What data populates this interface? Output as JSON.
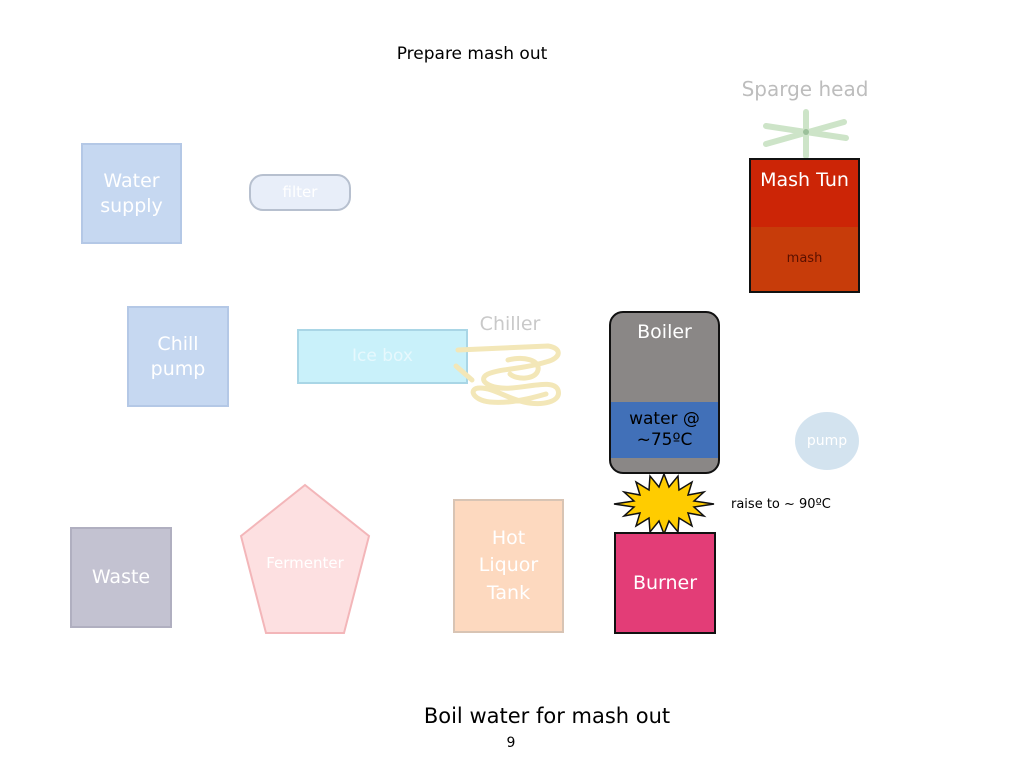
{
  "slide": {
    "heading": "Prepare mash out",
    "caption": "Boil water for mash out",
    "page_number": "9"
  },
  "components": {
    "water_supply": "Water supply",
    "filter": "filter",
    "chill_pump": "Chill pump",
    "ice_box": "Ice box",
    "chiller": "Chiller",
    "waste": "Waste",
    "fermenter": "Fermenter",
    "hot_liquor_tank": "Hot Liquor Tank",
    "sparge_head": "Sparge head",
    "mash_tun": "Mash Tun",
    "mash": "mash",
    "boiler": "Boiler",
    "boiler_water": "water @ ~75ºC",
    "pump": "pump",
    "burner": "Burner",
    "burner_note": "raise to ~ 90ºC"
  },
  "colors": {
    "faded_blue": "#c6d8f1",
    "faded_filter": "#e8eef9",
    "faded_ice": "#c9f1fa",
    "faded_waste": "#c3c2d1",
    "faded_fermenter": "#fde0e1",
    "faded_hlt": "#fdd9bf",
    "mash_tun_top": "#cc2506",
    "mash": "#c73c0a",
    "boiler_body": "#8a8786",
    "boiler_water": "#4170b8",
    "flame": "#ffcc00",
    "burner": "#e33d77",
    "pump": "#d3e3ef"
  }
}
